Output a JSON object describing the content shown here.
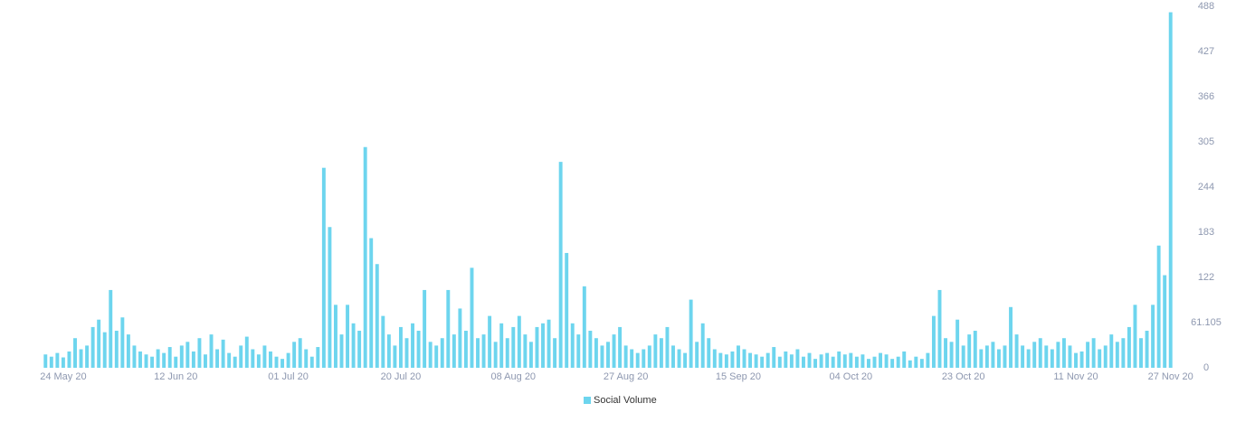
{
  "chart_data": {
    "type": "bar",
    "categories": [
      null,
      null,
      null,
      "24 May 20",
      null,
      null,
      null,
      null,
      null,
      null,
      null,
      null,
      null,
      null,
      null,
      null,
      null,
      null,
      null,
      null,
      null,
      null,
      "12 Jun 20",
      null,
      null,
      null,
      null,
      null,
      null,
      null,
      null,
      null,
      null,
      null,
      null,
      null,
      null,
      null,
      null,
      null,
      null,
      "01 Jul 20",
      null,
      null,
      null,
      null,
      null,
      null,
      null,
      null,
      null,
      null,
      null,
      null,
      null,
      null,
      null,
      null,
      null,
      null,
      "20 Jul 20",
      null,
      null,
      null,
      null,
      null,
      null,
      null,
      null,
      null,
      null,
      null,
      null,
      null,
      null,
      null,
      null,
      null,
      null,
      "08 Aug 20",
      null,
      null,
      null,
      null,
      null,
      null,
      null,
      null,
      null,
      null,
      null,
      null,
      null,
      null,
      null,
      null,
      null,
      null,
      "27 Aug 20",
      null,
      null,
      null,
      null,
      null,
      null,
      null,
      null,
      null,
      null,
      null,
      null,
      null,
      null,
      null,
      null,
      null,
      null,
      "15 Sep 20",
      null,
      null,
      null,
      null,
      null,
      null,
      null,
      null,
      null,
      null,
      null,
      null,
      null,
      null,
      null,
      null,
      null,
      null,
      "04 Oct 20",
      null,
      null,
      null,
      null,
      null,
      null,
      null,
      null,
      null,
      null,
      null,
      null,
      null,
      null,
      null,
      null,
      null,
      null,
      "23 Oct 20",
      null,
      null,
      null,
      null,
      null,
      null,
      null,
      null,
      null,
      null,
      null,
      null,
      null,
      null,
      null,
      null,
      null,
      null,
      "11 Nov 20",
      null,
      null,
      null,
      null,
      null,
      null,
      null,
      null,
      null,
      null,
      null,
      null,
      null,
      null,
      null,
      "27 Nov 20"
    ],
    "series": [
      {
        "name": "Social Volume",
        "color": "#6dd5ee",
        "values": [
          18,
          15,
          20,
          14,
          22,
          40,
          25,
          30,
          55,
          65,
          48,
          105,
          50,
          68,
          45,
          30,
          22,
          18,
          15,
          25,
          20,
          28,
          15,
          30,
          35,
          22,
          40,
          18,
          45,
          25,
          38,
          20,
          15,
          30,
          42,
          25,
          18,
          30,
          22,
          15,
          12,
          20,
          35,
          40,
          25,
          15,
          28,
          270,
          190,
          85,
          45,
          85,
          60,
          50,
          298,
          175,
          140,
          70,
          45,
          30,
          55,
          40,
          60,
          50,
          105,
          35,
          30,
          40,
          105,
          45,
          80,
          50,
          135,
          40,
          45,
          70,
          35,
          60,
          40,
          55,
          70,
          45,
          35,
          55,
          60,
          65,
          40,
          278,
          155,
          60,
          45,
          110,
          50,
          40,
          30,
          35,
          45,
          55,
          30,
          25,
          20,
          25,
          30,
          45,
          40,
          55,
          30,
          25,
          20,
          92,
          35,
          60,
          40,
          25,
          20,
          18,
          22,
          30,
          25,
          20,
          18,
          15,
          20,
          28,
          15,
          22,
          18,
          25,
          15,
          20,
          12,
          18,
          20,
          15,
          22,
          18,
          20,
          15,
          18,
          12,
          15,
          20,
          18,
          12,
          15,
          22,
          10,
          15,
          12,
          20,
          70,
          105,
          40,
          35,
          65,
          30,
          45,
          50,
          25,
          30,
          35,
          25,
          30,
          82,
          45,
          30,
          25,
          35,
          40,
          30,
          25,
          35,
          40,
          30,
          20,
          22,
          35,
          40,
          25,
          30,
          45,
          35,
          40,
          55,
          85,
          40,
          50,
          85,
          165,
          125,
          480
        ]
      }
    ],
    "ylim": [
      0,
      488
    ],
    "yticks": [
      0,
      61.105,
      122,
      183,
      244,
      305,
      366,
      427,
      488
    ],
    "grid": false
  }
}
